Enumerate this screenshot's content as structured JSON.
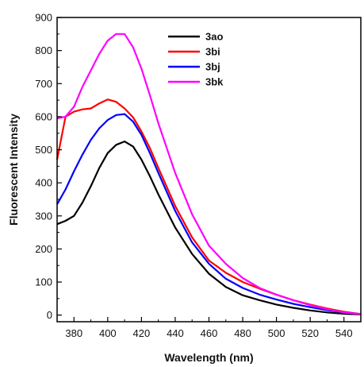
{
  "chart_data": {
    "type": "line",
    "title": "",
    "xlabel": "Wavelength (nm)",
    "ylabel": "Fluorescent Intensity",
    "xlim": [
      370,
      550
    ],
    "ylim": [
      -20,
      900
    ],
    "xticks": [
      380,
      400,
      420,
      440,
      460,
      480,
      500,
      520,
      540
    ],
    "yticks": [
      0,
      100,
      200,
      300,
      400,
      500,
      600,
      700,
      800,
      900
    ],
    "legend_position": "top-right",
    "grid": false,
    "x": [
      370,
      375,
      380,
      385,
      390,
      395,
      400,
      405,
      410,
      415,
      420,
      425,
      430,
      440,
      450,
      460,
      470,
      480,
      490,
      500,
      510,
      520,
      530,
      540,
      550
    ],
    "series": [
      {
        "name": "3ao",
        "color": "#000000",
        "values": [
          275,
          285,
          300,
          340,
          390,
          445,
          490,
          515,
          525,
          510,
          470,
          420,
          365,
          265,
          185,
          125,
          85,
          60,
          45,
          32,
          22,
          14,
          8,
          4,
          2
        ]
      },
      {
        "name": "3bi",
        "color": "#ff0000",
        "values": [
          470,
          600,
          615,
          622,
          625,
          640,
          652,
          645,
          625,
          598,
          555,
          505,
          445,
          330,
          235,
          165,
          128,
          100,
          80,
          62,
          45,
          32,
          20,
          10,
          3
        ]
      },
      {
        "name": "3bj",
        "color": "#0000ff",
        "values": [
          335,
          380,
          435,
          485,
          530,
          565,
          590,
          605,
          608,
          585,
          545,
          490,
          430,
          315,
          220,
          155,
          110,
          82,
          62,
          47,
          34,
          24,
          15,
          8,
          3
        ]
      },
      {
        "name": "3bk",
        "color": "#ff00ff",
        "values": [
          595,
          600,
          630,
          690,
          740,
          790,
          830,
          850,
          850,
          810,
          745,
          665,
          580,
          430,
          305,
          210,
          155,
          112,
          82,
          62,
          45,
          30,
          18,
          8,
          3
        ]
      }
    ]
  }
}
